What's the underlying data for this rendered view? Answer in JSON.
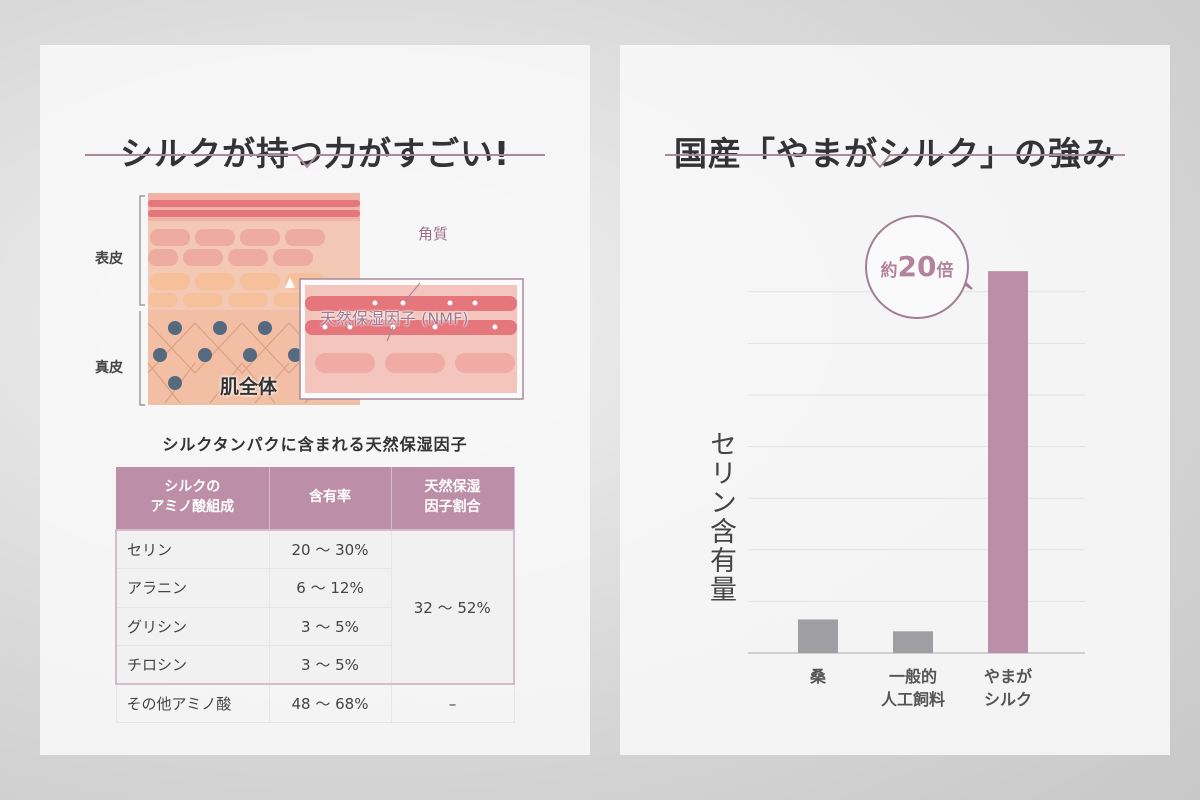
{
  "left": {
    "title": "シルクが持つ力がすごい!",
    "diagram": {
      "epidermis_label": "表皮",
      "dermis_label": "真皮",
      "whole_skin_label": "肌全体",
      "stratum_corneum_label": "角質",
      "nmf_label": "天然保湿因子 (NMF)"
    },
    "table_title": "シルクタンパクに含まれる天然保湿因子",
    "table": {
      "headers": [
        "シルクの\nアミノ酸組成",
        "含有率",
        "天然保湿\n因子割合"
      ],
      "rows": [
        {
          "name": "セリン",
          "rate": "20 ～ 30%"
        },
        {
          "name": "アラニン",
          "rate": "6 ～ 12%"
        },
        {
          "name": "グリシン",
          "rate": "3 ～ 5%"
        },
        {
          "name": "チロシン",
          "rate": "3 ～ 5%"
        }
      ],
      "nmf_share": "32 ～ 52%",
      "other": {
        "name": "その他アミノ酸",
        "rate": "48 ～ 68%",
        "share": "–"
      }
    }
  },
  "right": {
    "title": "国産「やまがシルク」の強み",
    "callout": {
      "prefix": "約",
      "number": "20",
      "suffix": "倍"
    }
  },
  "colors": {
    "accent": "#bd8ea8",
    "gray_bar": "#9e9ea3",
    "skin": "#f0b9a0",
    "cell_red": "#e5767c",
    "nucleus": "#556a7e"
  },
  "chart_data": {
    "type": "bar",
    "ylabel": "セリン含有量",
    "categories": [
      "桑",
      "一般的\n人工飼料",
      "やまが\nシルク"
    ],
    "values": [
      0.65,
      0.42,
      7.4
    ],
    "ylim": [
      0,
      7.5
    ],
    "y_ticks_labeled": false,
    "grid": true,
    "bar_colors": [
      "#9e9ea3",
      "#9e9ea3",
      "#bd8ea8"
    ],
    "annotation": "約20倍"
  }
}
